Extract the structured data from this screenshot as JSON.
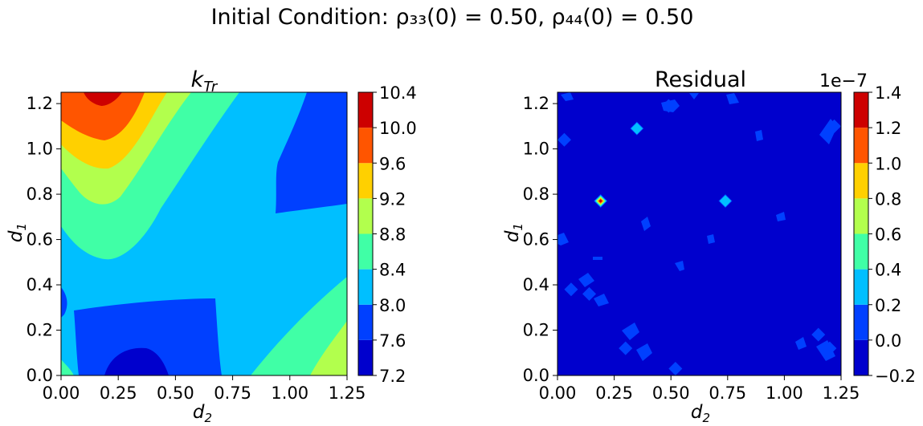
{
  "suptitle": "Initial Condition: ρ₃₃(0) = 0.50, ρ₄₄(0) = 0.50",
  "chart_data": [
    {
      "type": "heatmap",
      "subtype": "filled-contour",
      "title": "k_Tr",
      "title_main": "k",
      "title_sub": "Tr",
      "xlabel_main": "d",
      "xlabel_sub": "2",
      "ylabel_main": "d",
      "ylabel_sub": "1",
      "xlim": [
        0,
        1.25
      ],
      "ylim": [
        0,
        1.25
      ],
      "xticks": [
        "0.00",
        "0.25",
        "0.50",
        "0.75",
        "1.00",
        "1.25"
      ],
      "yticks": [
        "0.0",
        "0.2",
        "0.4",
        "0.6",
        "0.8",
        "1.0",
        "1.2"
      ],
      "colormap": "jet",
      "colorbar_levels": [
        "7.2",
        "7.6",
        "8.0",
        "8.4",
        "8.8",
        "9.2",
        "9.6",
        "10.0",
        "10.4"
      ],
      "level_colors": [
        "#0000cd",
        "#0040ff",
        "#00bfff",
        "#40ffa6",
        "#b2ff4d",
        "#ffd000",
        "#ff5500",
        "#cd0000"
      ],
      "colorbar_offset": "",
      "regions": [
        {
          "level_index": 2,
          "range": [
            8.0,
            8.4
          ],
          "x": [
            0,
            1.25
          ],
          "y": [
            0,
            1.25
          ]
        }
      ]
    },
    {
      "type": "heatmap",
      "subtype": "filled-contour",
      "title": "Residual",
      "xlabel_main": "d",
      "xlabel_sub": "2",
      "ylabel_main": "d",
      "ylabel_sub": "1",
      "xlim": [
        0,
        1.25
      ],
      "ylim": [
        0,
        1.25
      ],
      "xticks": [
        "0.00",
        "0.25",
        "0.50",
        "0.75",
        "1.00",
        "1.25"
      ],
      "yticks": [
        "0.0",
        "0.2",
        "0.4",
        "0.6",
        "0.8",
        "1.0",
        "1.2"
      ],
      "colormap": "jet",
      "colorbar_levels": [
        "−0.2",
        "0.0",
        "0.2",
        "0.4",
        "0.6",
        "0.8",
        "1.0",
        "1.2",
        "1.4"
      ],
      "level_colors": [
        "#0000cd",
        "#0040ff",
        "#00bfff",
        "#40ffa6",
        "#b2ff4d",
        "#ffd000",
        "#ff5500",
        "#cd0000"
      ],
      "colorbar_offset": "1e−7",
      "background_level_index": 0,
      "peaks": [
        {
          "x": 0.19,
          "y": 0.77,
          "max_level_index": 7
        },
        {
          "x": 0.74,
          "y": 0.77,
          "max_level_index": 2
        },
        {
          "x": 0.35,
          "y": 1.09,
          "max_level_index": 2
        },
        {
          "x": 0.52,
          "y": 0.03,
          "max_level_index": 1
        },
        {
          "x": 0.03,
          "y": 1.04,
          "max_level_index": 1
        },
        {
          "x": 0.49,
          "y": 1.19,
          "max_level_index": 1
        },
        {
          "x": 0.14,
          "y": 0.36,
          "max_level_index": 1
        },
        {
          "x": 0.3,
          "y": 0.12,
          "max_level_index": 1
        },
        {
          "x": 1.15,
          "y": 0.18,
          "max_level_index": 1
        },
        {
          "x": 1.2,
          "y": 0.12,
          "max_level_index": 1
        },
        {
          "x": 1.22,
          "y": 1.1,
          "max_level_index": 1
        },
        {
          "x": 0.06,
          "y": 0.38,
          "max_level_index": 1
        }
      ]
    }
  ]
}
